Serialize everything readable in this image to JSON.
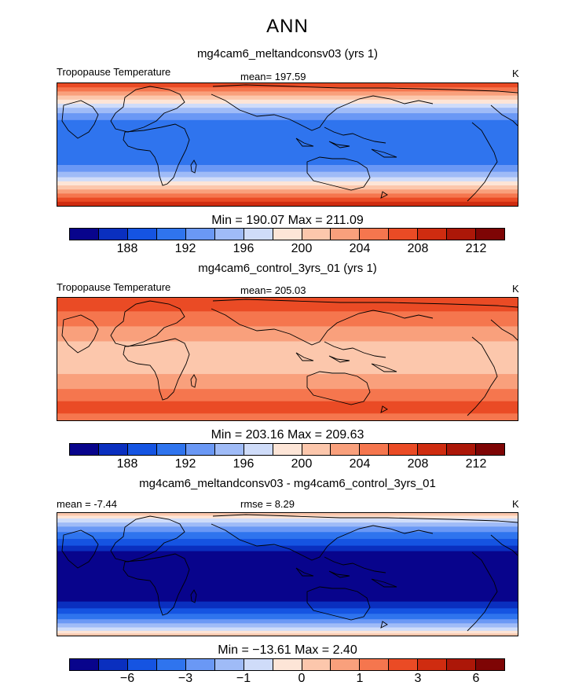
{
  "figure": {
    "season": "ANN",
    "colormap": [
      "#08048c",
      "#0a2fbf",
      "#1554e2",
      "#2f74ee",
      "#6a98f5",
      "#9fbbf7",
      "#cfdcf9",
      "#fde5d7",
      "#fcc7ac",
      "#f9a07c",
      "#f5764e",
      "#ea4b25",
      "#cf2c10",
      "#ac1708",
      "#7e0505"
    ]
  },
  "panels": [
    {
      "title": "mg4cam6_meltandconsv03 (yrs 1)",
      "variable": "Tropopause Temperature",
      "stat_left": "",
      "stat_center": "mean=  197.59",
      "units": "K",
      "minmax": "Min =  190.07  Max =  211.09",
      "colorbar_ticks": [
        "188",
        "192",
        "196",
        "200",
        "204",
        "208",
        "212"
      ],
      "bands": [
        {
          "lat_top": 90,
          "lat_bottom": 84,
          "level": 11
        },
        {
          "lat_top": 84,
          "lat_bottom": 78,
          "level": 10
        },
        {
          "lat_top": 78,
          "lat_bottom": 72,
          "level": 9
        },
        {
          "lat_top": 72,
          "lat_bottom": 66,
          "level": 8
        },
        {
          "lat_top": 66,
          "lat_bottom": 60,
          "level": 7
        },
        {
          "lat_top": 60,
          "lat_bottom": 54,
          "level": 6
        },
        {
          "lat_top": 54,
          "lat_bottom": 46,
          "level": 5
        },
        {
          "lat_top": 46,
          "lat_bottom": 36,
          "level": 4
        },
        {
          "lat_top": 36,
          "lat_bottom": -30,
          "level": 3
        },
        {
          "lat_top": -30,
          "lat_bottom": -40,
          "level": 4
        },
        {
          "lat_top": -40,
          "lat_bottom": -48,
          "level": 5
        },
        {
          "lat_top": -48,
          "lat_bottom": -54,
          "level": 6
        },
        {
          "lat_top": -54,
          "lat_bottom": -60,
          "level": 7
        },
        {
          "lat_top": -60,
          "lat_bottom": -66,
          "level": 8
        },
        {
          "lat_top": -66,
          "lat_bottom": -72,
          "level": 9
        },
        {
          "lat_top": -72,
          "lat_bottom": -78,
          "level": 10
        },
        {
          "lat_top": -78,
          "lat_bottom": -84,
          "level": 11
        },
        {
          "lat_top": -84,
          "lat_bottom": -90,
          "level": 12
        }
      ]
    },
    {
      "title": "mg4cam6_control_3yrs_01 (yrs 1)",
      "variable": "Tropopause Temperature",
      "stat_left": "",
      "stat_center": "mean=  205.03",
      "units": "K",
      "minmax": "Min =  203.16  Max =  209.63",
      "colorbar_ticks": [
        "188",
        "192",
        "196",
        "200",
        "204",
        "208",
        "212"
      ],
      "bands": [
        {
          "lat_top": 90,
          "lat_bottom": 70,
          "level": 11
        },
        {
          "lat_top": 70,
          "lat_bottom": 48,
          "level": 10
        },
        {
          "lat_top": 48,
          "lat_bottom": 26,
          "level": 9
        },
        {
          "lat_top": 26,
          "lat_bottom": -22,
          "level": 8
        },
        {
          "lat_top": -22,
          "lat_bottom": -44,
          "level": 9
        },
        {
          "lat_top": -44,
          "lat_bottom": -62,
          "level": 10
        },
        {
          "lat_top": -62,
          "lat_bottom": -80,
          "level": 11
        },
        {
          "lat_top": -80,
          "lat_bottom": -90,
          "level": 10
        }
      ]
    },
    {
      "title": "mg4cam6_meltandconsv03 - mg4cam6_control_3yrs_01",
      "variable": "",
      "stat_left": "mean =   -7.44",
      "stat_center": "rmse =    8.29",
      "units": "K",
      "minmax": "Min = −13.61  Max =    2.40",
      "colorbar_ticks": [
        "−6",
        "−3",
        "−1",
        "0",
        "1",
        "3",
        "6"
      ],
      "bands": [
        {
          "lat_top": 90,
          "lat_bottom": 86,
          "level": 8
        },
        {
          "lat_top": 86,
          "lat_bottom": 82,
          "level": 7
        },
        {
          "lat_top": 82,
          "lat_bottom": 76,
          "level": 6
        },
        {
          "lat_top": 76,
          "lat_bottom": 70,
          "level": 5
        },
        {
          "lat_top": 70,
          "lat_bottom": 62,
          "level": 4
        },
        {
          "lat_top": 62,
          "lat_bottom": 52,
          "level": 3
        },
        {
          "lat_top": 52,
          "lat_bottom": 42,
          "level": 2
        },
        {
          "lat_top": 42,
          "lat_bottom": 34,
          "level": 1
        },
        {
          "lat_top": 34,
          "lat_bottom": -40,
          "level": 0
        },
        {
          "lat_top": -40,
          "lat_bottom": -50,
          "level": 1
        },
        {
          "lat_top": -50,
          "lat_bottom": -58,
          "level": 2
        },
        {
          "lat_top": -58,
          "lat_bottom": -66,
          "level": 3
        },
        {
          "lat_top": -66,
          "lat_bottom": -72,
          "level": 4
        },
        {
          "lat_top": -72,
          "lat_bottom": -78,
          "level": 5
        },
        {
          "lat_top": -78,
          "lat_bottom": -83,
          "level": 6
        },
        {
          "lat_top": -83,
          "lat_bottom": -87,
          "level": 7
        },
        {
          "lat_top": -87,
          "lat_bottom": -90,
          "level": 8
        }
      ]
    }
  ]
}
